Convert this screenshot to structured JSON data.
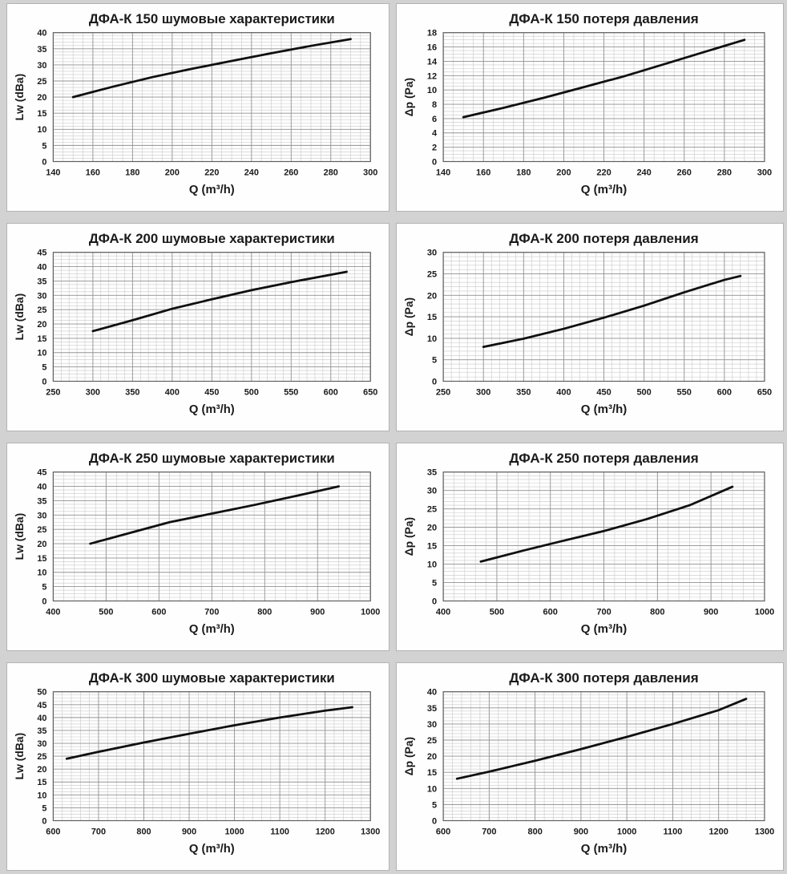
{
  "page": {
    "background": "#d2d2d2",
    "panel_background": "#fefefe",
    "panel_border": "#b3b3b3",
    "grid_minor_color": "#c9c9c9",
    "grid_major_color": "#949494",
    "plot_border_color": "#5f5f5f",
    "curve_color": "#101010",
    "text_color": "#1a1a1a"
  },
  "chart_data": [
    {
      "type": "line",
      "title": "ДФА-К 150 шумовые характеристики",
      "xlabel": "Q (m³/h)",
      "ylabel": "Lw (dBa)",
      "xlim": [
        140,
        300
      ],
      "ylim": [
        0,
        40
      ],
      "xticks": [
        140,
        160,
        180,
        200,
        220,
        240,
        260,
        280,
        300
      ],
      "yticks": [
        0,
        5,
        10,
        15,
        20,
        25,
        30,
        35,
        40
      ],
      "x_minor_step": 5,
      "y_minor_step": 1,
      "grid": true,
      "legend_position": "none",
      "x": [
        150,
        170,
        190,
        210,
        230,
        250,
        270,
        290
      ],
      "y": [
        20,
        23.2,
        26.2,
        28.8,
        31.2,
        33.6,
        35.9,
        38
      ]
    },
    {
      "type": "line",
      "title": "ДФА-К 150 потеря давления",
      "xlabel": "Q (m³/h)",
      "ylabel": "Δp (Pa)",
      "xlim": [
        140,
        300
      ],
      "ylim": [
        0,
        18
      ],
      "xticks": [
        140,
        160,
        180,
        200,
        220,
        240,
        260,
        280,
        300
      ],
      "yticks": [
        0,
        2,
        4,
        6,
        8,
        10,
        12,
        14,
        16,
        18
      ],
      "x_minor_step": 5,
      "y_minor_step": 0.5,
      "grid": true,
      "legend_position": "none",
      "x": [
        150,
        170,
        190,
        210,
        230,
        250,
        270,
        290
      ],
      "y": [
        6.2,
        7.5,
        8.9,
        10.4,
        11.9,
        13.6,
        15.3,
        17
      ]
    },
    {
      "type": "line",
      "title": "ДФА-К 200 шумовые характеристики",
      "xlabel": "Q (m³/h)",
      "ylabel": "Lw (dBa)",
      "xlim": [
        250,
        650
      ],
      "ylim": [
        0,
        45
      ],
      "xticks": [
        250,
        300,
        350,
        400,
        450,
        500,
        550,
        600,
        650
      ],
      "yticks": [
        0,
        5,
        10,
        15,
        20,
        25,
        30,
        35,
        40,
        45
      ],
      "x_minor_step": 10,
      "y_minor_step": 1.25,
      "grid": true,
      "legend_position": "none",
      "x": [
        300,
        350,
        400,
        450,
        500,
        550,
        600,
        620
      ],
      "y": [
        17.5,
        21.3,
        25.3,
        28.6,
        31.8,
        34.6,
        37.2,
        38.2
      ]
    },
    {
      "type": "line",
      "title": "ДФА-К 200 потеря давления",
      "xlabel": "Q (m³/h)",
      "ylabel": "Δp (Pa)",
      "xlim": [
        250,
        650
      ],
      "ylim": [
        0,
        30
      ],
      "xticks": [
        250,
        300,
        350,
        400,
        450,
        500,
        550,
        600,
        650
      ],
      "yticks": [
        0,
        5,
        10,
        15,
        20,
        25,
        30
      ],
      "x_minor_step": 10,
      "y_minor_step": 1,
      "grid": true,
      "legend_position": "none",
      "x": [
        300,
        350,
        400,
        450,
        500,
        550,
        600,
        620
      ],
      "y": [
        8,
        9.9,
        12.2,
        14.8,
        17.6,
        20.7,
        23.6,
        24.5
      ]
    },
    {
      "type": "line",
      "title": "ДФА-К 250 шумовые характеристики",
      "xlabel": "Q (m³/h)",
      "ylabel": "Lw (dBa)",
      "xlim": [
        400,
        1000
      ],
      "ylim": [
        0,
        45
      ],
      "xticks": [
        400,
        500,
        600,
        700,
        800,
        900,
        1000
      ],
      "yticks": [
        0,
        5,
        10,
        15,
        20,
        25,
        30,
        35,
        40,
        45
      ],
      "x_minor_step": 20,
      "y_minor_step": 1.25,
      "grid": true,
      "legend_position": "none",
      "x": [
        470,
        550,
        620,
        700,
        780,
        860,
        940
      ],
      "y": [
        20,
        24,
        27.5,
        30.5,
        33.5,
        36.7,
        40
      ]
    },
    {
      "type": "line",
      "title": "ДФА-К 250 потеря давления",
      "xlabel": "Q (m³/h)",
      "ylabel": "Δp (Pa)",
      "xlim": [
        400,
        1000
      ],
      "ylim": [
        0,
        35
      ],
      "xticks": [
        400,
        500,
        600,
        700,
        800,
        900,
        1000
      ],
      "yticks": [
        0,
        5,
        10,
        15,
        20,
        25,
        30,
        35
      ],
      "x_minor_step": 20,
      "y_minor_step": 1,
      "grid": true,
      "legend_position": "none",
      "x": [
        470,
        550,
        620,
        700,
        780,
        860,
        940
      ],
      "y": [
        10.7,
        13.7,
        16.2,
        19,
        22.2,
        26,
        31
      ]
    },
    {
      "type": "line",
      "title": "ДФА-К 300 шумовые характеристики",
      "xlabel": "Q (m³/h)",
      "ylabel": "Lw (dBa)",
      "xlim": [
        600,
        1300
      ],
      "ylim": [
        0,
        50
      ],
      "xticks": [
        600,
        700,
        800,
        900,
        1000,
        1100,
        1200,
        1300
      ],
      "yticks": [
        0,
        5,
        10,
        15,
        20,
        25,
        30,
        35,
        40,
        45,
        50
      ],
      "x_minor_step": 20,
      "y_minor_step": 1.25,
      "grid": true,
      "legend_position": "none",
      "x": [
        630,
        700,
        800,
        900,
        1000,
        1100,
        1200,
        1260
      ],
      "y": [
        24,
        26.7,
        30.3,
        33.7,
        37,
        40,
        42.7,
        44
      ]
    },
    {
      "type": "line",
      "title": "ДФА-К 300 потеря давления",
      "xlabel": "Q (m³/h)",
      "ylabel": "Δp (Pa)",
      "xlim": [
        600,
        1300
      ],
      "ylim": [
        0,
        40
      ],
      "xticks": [
        600,
        700,
        800,
        900,
        1000,
        1100,
        1200,
        1300
      ],
      "yticks": [
        0,
        5,
        10,
        15,
        20,
        25,
        30,
        35,
        40
      ],
      "x_minor_step": 20,
      "y_minor_step": 1,
      "grid": true,
      "legend_position": "none",
      "x": [
        630,
        700,
        800,
        900,
        1000,
        1100,
        1200,
        1260
      ],
      "y": [
        13,
        15.2,
        18.6,
        22.2,
        26,
        30,
        34.3,
        37.8
      ]
    }
  ]
}
